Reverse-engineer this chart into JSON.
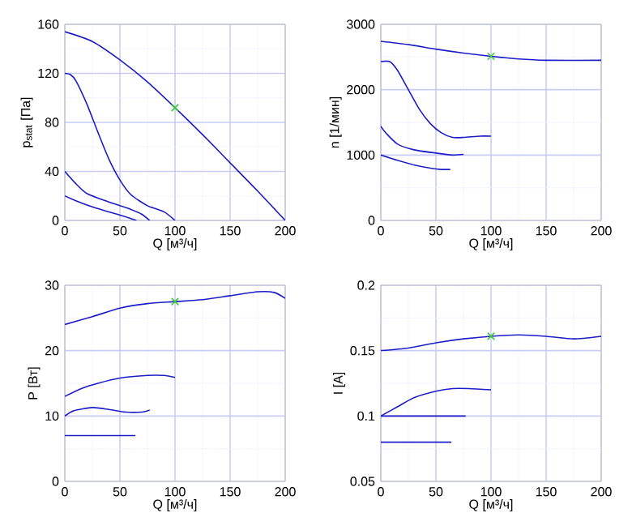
{
  "chart_data": [
    {
      "type": "line",
      "xlabel": "Q [м³/ч]",
      "ylabel": "p$_{stat}$ [Па]",
      "xlim": [
        0,
        200
      ],
      "ylim": [
        0,
        160
      ],
      "xticks": [
        0,
        50,
        100,
        150,
        200
      ],
      "yticks": [
        0,
        40,
        80,
        120,
        160
      ],
      "grid": true,
      "marker": "none",
      "series": [
        {
          "color": "#1c1cc8",
          "x": [
            0,
            25,
            50,
            75,
            100,
            125,
            150,
            175,
            200
          ],
          "values": [
            154,
            146,
            131,
            113,
            92,
            70,
            47,
            24,
            0
          ]
        },
        {
          "color": "#1c1cc8",
          "x": [
            0,
            5,
            10,
            20,
            30,
            40,
            50,
            60,
            75,
            90,
            100
          ],
          "values": [
            120,
            119,
            114,
            95,
            72,
            50,
            33,
            21,
            12,
            7,
            0
          ]
        },
        {
          "color": "#1c1cc8",
          "x": [
            0,
            10,
            20,
            40,
            60,
            70,
            77
          ],
          "values": [
            40,
            30,
            22,
            15,
            9,
            5,
            0
          ]
        },
        {
          "color": "#1c1cc8",
          "x": [
            0,
            10,
            25,
            40,
            55,
            65
          ],
          "values": [
            20,
            16,
            11,
            7,
            3,
            0
          ]
        },
        {
          "type": "scatter",
          "marker": "cross",
          "color": "#3cc83c",
          "x": [
            100
          ],
          "values": [
            92
          ]
        }
      ]
    },
    {
      "type": "line",
      "xlabel": "Q [м³/ч]",
      "ylabel": "n [1/мин]",
      "xlim": [
        0,
        200
      ],
      "ylim": [
        0,
        3000
      ],
      "xticks": [
        0,
        50,
        100,
        150,
        200
      ],
      "yticks": [
        0,
        1000,
        2000,
        3000
      ],
      "grid": true,
      "marker": "none",
      "series": [
        {
          "color": "#1c1cc8",
          "x": [
            0,
            25,
            50,
            75,
            100,
            125,
            150,
            200
          ],
          "values": [
            2740,
            2690,
            2620,
            2560,
            2510,
            2470,
            2450,
            2450
          ]
        },
        {
          "color": "#1c1cc8",
          "x": [
            0,
            8,
            15,
            25,
            35,
            45,
            55,
            65,
            75,
            90,
            100
          ],
          "values": [
            2430,
            2430,
            2300,
            2000,
            1700,
            1480,
            1340,
            1270,
            1270,
            1290,
            1290
          ]
        },
        {
          "color": "#1c1cc8",
          "x": [
            0,
            5,
            15,
            30,
            50,
            65,
            75
          ],
          "values": [
            1440,
            1330,
            1170,
            1080,
            1030,
            1000,
            1010
          ]
        },
        {
          "color": "#1c1cc8",
          "x": [
            0,
            15,
            30,
            45,
            55,
            63
          ],
          "values": [
            1000,
            920,
            850,
            800,
            780,
            780
          ]
        },
        {
          "type": "scatter",
          "marker": "cross",
          "color": "#3cc83c",
          "x": [
            100
          ],
          "values": [
            2510
          ]
        }
      ]
    },
    {
      "type": "line",
      "xlabel": "Q [м³/ч]",
      "ylabel": "P [Вт]",
      "xlim": [
        0,
        200
      ],
      "ylim": [
        0,
        30
      ],
      "xticks": [
        0,
        50,
        100,
        150,
        200
      ],
      "yticks": [
        0,
        10,
        20,
        30
      ],
      "grid": true,
      "marker": "none",
      "series": [
        {
          "color": "#1c1cc8",
          "x": [
            0,
            25,
            50,
            75,
            100,
            125,
            150,
            175,
            190,
            200
          ],
          "values": [
            24,
            25.2,
            26.5,
            27.2,
            27.5,
            27.8,
            28.4,
            29,
            28.9,
            28
          ]
        },
        {
          "color": "#1c1cc8",
          "x": [
            0,
            15,
            30,
            50,
            75,
            90,
            100
          ],
          "values": [
            13,
            14.2,
            15,
            15.8,
            16.2,
            16.2,
            15.9
          ]
        },
        {
          "color": "#1c1cc8",
          "x": [
            0,
            8,
            25,
            40,
            55,
            70,
            77
          ],
          "values": [
            10,
            10.8,
            11.3,
            11,
            10.6,
            10.6,
            10.9
          ]
        },
        {
          "color": "#1c1cc8",
          "x": [
            0,
            64
          ],
          "values": [
            7,
            7
          ]
        },
        {
          "type": "scatter",
          "marker": "cross",
          "color": "#3cc83c",
          "x": [
            100
          ],
          "values": [
            27.5
          ]
        }
      ]
    },
    {
      "type": "line",
      "xlabel": "Q [м³/ч]",
      "ylabel": "I [А]",
      "xlim": [
        0,
        200
      ],
      "ylim": [
        0.05,
        0.2
      ],
      "xticks": [
        0,
        50,
        100,
        150,
        200
      ],
      "yticks": [
        0.05,
        0.1,
        0.15,
        0.2
      ],
      "grid": true,
      "marker": "none",
      "series": [
        {
          "color": "#1c1cc8",
          "x": [
            0,
            25,
            50,
            75,
            100,
            125,
            150,
            175,
            200
          ],
          "values": [
            0.15,
            0.152,
            0.156,
            0.159,
            0.161,
            0.162,
            0.161,
            0.159,
            0.161
          ]
        },
        {
          "color": "#1c1cc8",
          "x": [
            0,
            15,
            30,
            50,
            65,
            80,
            100
          ],
          "values": [
            0.1,
            0.107,
            0.114,
            0.119,
            0.121,
            0.121,
            0.12
          ]
        },
        {
          "color": "#1c1cc8",
          "x": [
            0,
            77
          ],
          "values": [
            0.1,
            0.1
          ]
        },
        {
          "color": "#1c1cc8",
          "x": [
            0,
            64
          ],
          "values": [
            0.08,
            0.08
          ]
        },
        {
          "type": "scatter",
          "marker": "cross",
          "color": "#3cc83c",
          "x": [
            100
          ],
          "values": [
            0.161
          ]
        }
      ]
    }
  ]
}
